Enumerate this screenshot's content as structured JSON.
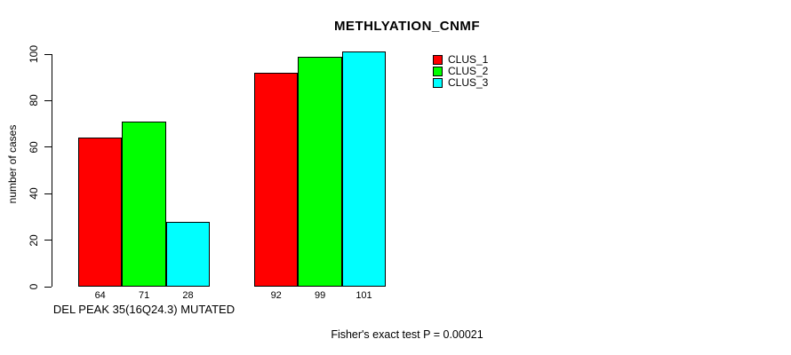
{
  "page": {
    "background": "#ffffff",
    "text_color": "#000000"
  },
  "chart_data": {
    "type": "bar",
    "title": "METHLYATION_CNMF",
    "ylabel": "number of cases",
    "xlabel": "",
    "ylim": [
      0,
      100
    ],
    "yticks": [
      0,
      20,
      40,
      60,
      80,
      100
    ],
    "categories": [
      "DEL PEAK 35(16Q24.3) MUTATED",
      ""
    ],
    "group_label": "DEL PEAK 35(16Q24.3) MUTATED",
    "series": [
      {
        "name": "CLUS_1",
        "color": "#ff0000",
        "values": [
          64,
          92
        ]
      },
      {
        "name": "CLUS_2",
        "color": "#00ff00",
        "values": [
          71,
          99
        ]
      },
      {
        "name": "CLUS_3",
        "color": "#00ffff",
        "values": [
          28,
          101
        ]
      }
    ],
    "bar_border_color": "#000000",
    "grid": false,
    "legend_position": "top-right",
    "annotation": "Fisher's exact test P = 0.00021"
  }
}
